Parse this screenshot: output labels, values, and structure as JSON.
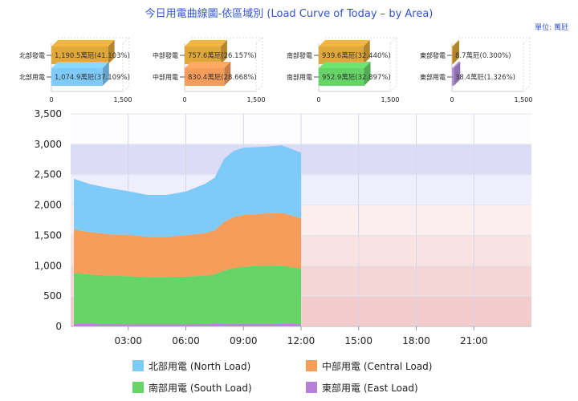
{
  "title": "今日用電曲線圖-依區域別 (Load Curve of Today – by Area)",
  "unit_label": "單位: 萬瓩",
  "colors": {
    "north": "#7ecbfa",
    "central": "#f79d5c",
    "south": "#66d466",
    "east": "#b57ed8",
    "north_gen": "#e0a83a",
    "central_gen": "#e0a83a",
    "south_gen": "#e0a83a",
    "east_gen": "#e0a83a",
    "central_bar": "#f79d5c",
    "south_bar": "#66d466",
    "east_bar": "#b08ed8",
    "title": "#3355cc"
  },
  "regions": [
    {
      "gen_label": "北部發電",
      "load_label": "北部用電",
      "gen_text": "1,190.5萬瓩(41.103%)",
      "load_text": "1,074.9萬瓩(37.109%)",
      "gen_value": 1190.5,
      "load_value": 1074.9,
      "load_color_key": "north",
      "axis_min": "0",
      "axis_max": "1,500"
    },
    {
      "gen_label": "中部發電",
      "load_label": "中部用電",
      "gen_text": "757.6萬瓩(26.157%)",
      "load_text": "830.4萬瓩(28.668%)",
      "gen_value": 757.6,
      "load_value": 830.4,
      "load_color_key": "central_bar",
      "axis_min": "0",
      "axis_max": "1,500"
    },
    {
      "gen_label": "南部發電",
      "load_label": "南部用電",
      "gen_text": "939.6萬瓩(32.440%)",
      "load_text": "952.9萬瓩(32.897%)",
      "gen_value": 939.6,
      "load_value": 952.9,
      "load_color_key": "south_bar",
      "axis_min": "0",
      "axis_max": "1,500"
    },
    {
      "gen_label": "東部發電",
      "load_label": "東部用電",
      "gen_text": "8.7萬瓩(0.300%)",
      "load_text": "38.4萬瓩(1.326%)",
      "gen_value": 8.7,
      "load_value": 38.4,
      "load_color_key": "east_bar",
      "axis_min": "0",
      "axis_max": "1,500"
    }
  ],
  "chart_data": {
    "type": "area",
    "stacked": true,
    "x_unit": "hour",
    "xlim": [
      0,
      24
    ],
    "ylim": [
      0,
      3500
    ],
    "y_ticks": [
      "0",
      "500",
      "1,000",
      "1,500",
      "2,000",
      "2,500",
      "3,000",
      "3,500"
    ],
    "x_ticks": [
      {
        "x": 3,
        "label": "03:00"
      },
      {
        "x": 6,
        "label": "06:00"
      },
      {
        "x": 9,
        "label": "09:00"
      },
      {
        "x": 12,
        "label": "12:00"
      },
      {
        "x": 15,
        "label": "15:00"
      },
      {
        "x": 18,
        "label": "18:00"
      },
      {
        "x": 21,
        "label": "21:00"
      }
    ],
    "x": [
      0.17,
      1,
      2,
      3,
      4,
      5,
      6,
      7,
      7.5,
      8,
      8.5,
      9,
      10,
      11,
      12
    ],
    "series": [
      {
        "name": "東部用電 (East Load)",
        "color_key": "east",
        "values": [
          40,
          40,
          38,
          37,
          36,
          36,
          37,
          38,
          40,
          42,
          43,
          43,
          43,
          42,
          38
        ]
      },
      {
        "name": "南部用電 (South Load)",
        "color_key": "south",
        "values": [
          840,
          815,
          800,
          790,
          780,
          780,
          785,
          800,
          820,
          880,
          920,
          940,
          955,
          960,
          915
        ]
      },
      {
        "name": "中部用電 (Central Load)",
        "color_key": "central",
        "values": [
          720,
          700,
          680,
          680,
          660,
          660,
          680,
          700,
          720,
          800,
          840,
          850,
          860,
          870,
          830
        ]
      },
      {
        "name": "北部用電 (North Load)",
        "color_key": "north",
        "values": [
          830,
          790,
          760,
          720,
          690,
          690,
          720,
          810,
          870,
          1040,
          1090,
          1110,
          1100,
          1110,
          1080
        ]
      }
    ],
    "legend": [
      {
        "label": "北部用電 (North Load)",
        "color_key": "north"
      },
      {
        "label": "中部用電 (Central Load)",
        "color_key": "central"
      },
      {
        "label": "南部用電 (South Load)",
        "color_key": "south"
      },
      {
        "label": "東部用電 (East Load)",
        "color_key": "east"
      }
    ],
    "background_bands": [
      {
        "from": 2500,
        "to": 3000,
        "color": "#dcdcf6"
      },
      {
        "from": 2000,
        "to": 2500,
        "color": "#eeeefc"
      },
      {
        "from": 1500,
        "to": 2000,
        "color": "#fbeeee"
      },
      {
        "from": 1000,
        "to": 1500,
        "color": "#f8e2e2"
      },
      {
        "from": 500,
        "to": 1000,
        "color": "#f5d6d6"
      },
      {
        "from": 0,
        "to": 500,
        "color": "#f2cccc"
      }
    ],
    "legend_position": "bottom"
  }
}
